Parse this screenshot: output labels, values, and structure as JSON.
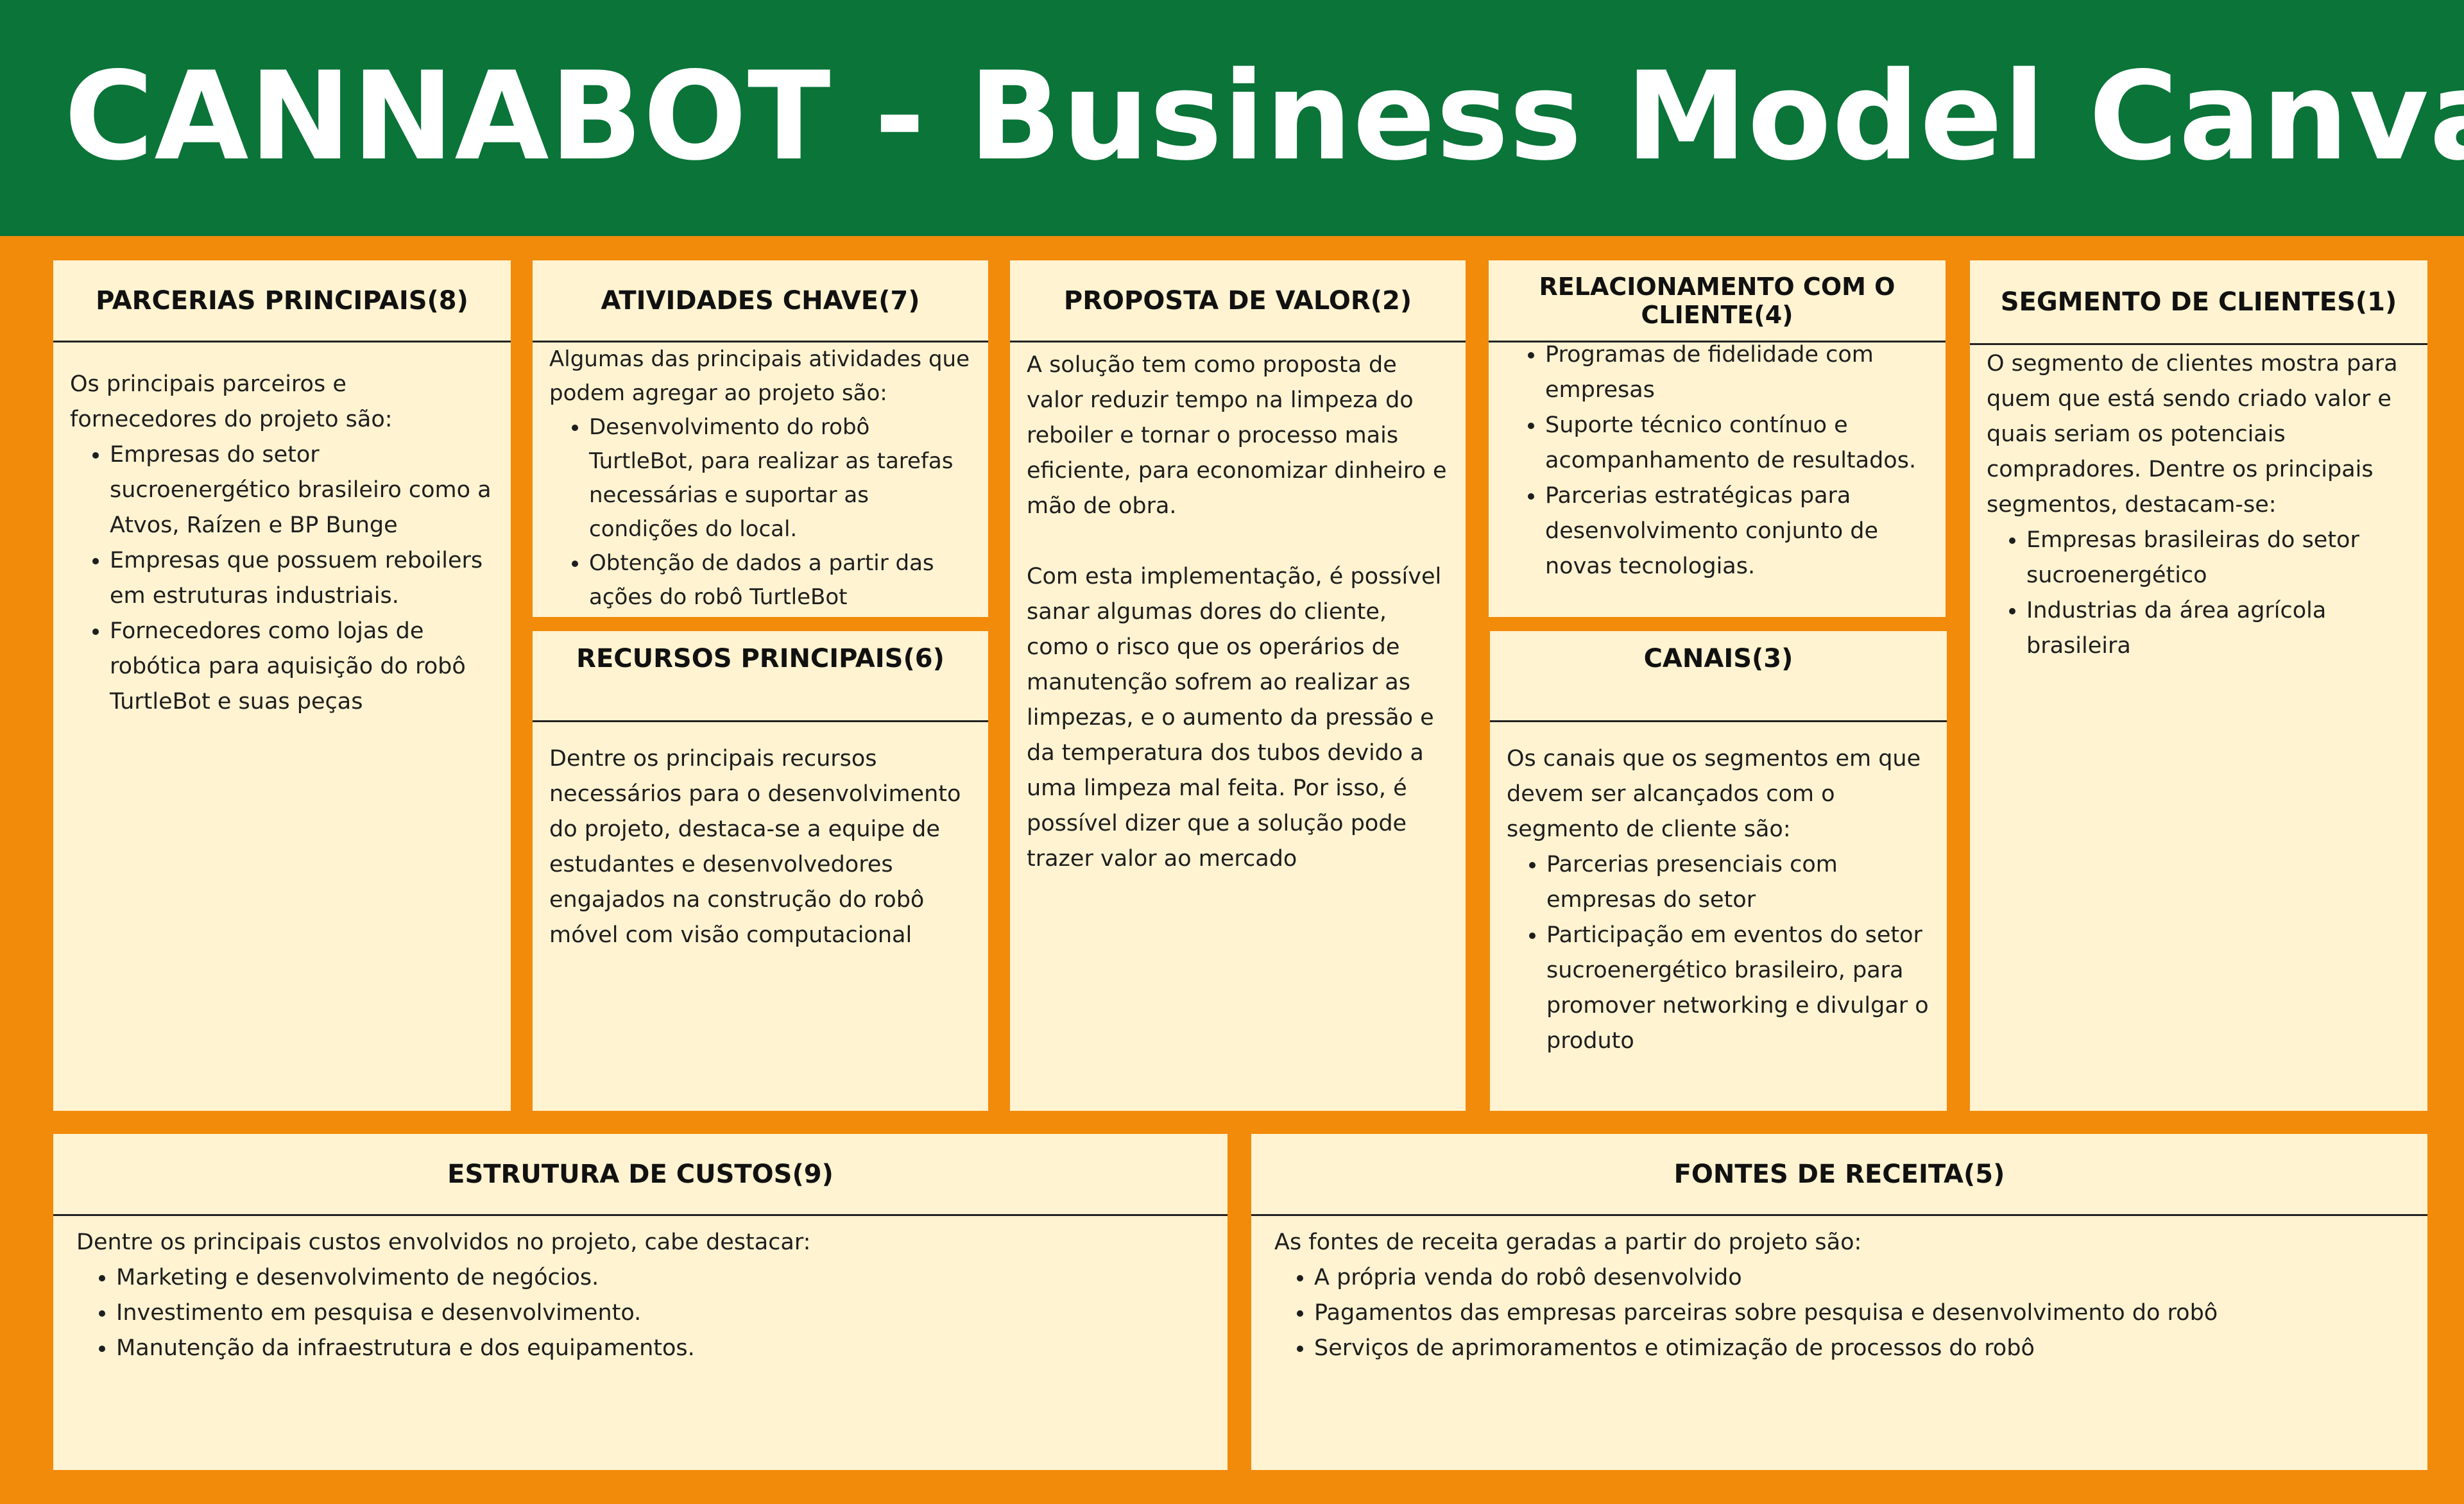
{
  "title": "CANNABOT - Business Model Canvas",
  "colors": {
    "header": "#0a7439",
    "background": "#f28a0a",
    "card": "#fff3d1"
  },
  "parcerias": {
    "title": "PARCERIAS PRINCIPAIS(8)",
    "intro": "Os principais parceiros e fornecedores do projeto são:",
    "items": [
      "Empresas do setor sucroenergético brasileiro como a Atvos, Raízen e BP Bunge",
      "Empresas que possuem reboilers em estruturas industriais.",
      "Fornecedores como lojas de robótica para aquisição do robô TurtleBot e suas peças"
    ]
  },
  "atividades": {
    "title": "ATIVIDADES CHAVE(7)",
    "intro": "Algumas das principais atividades que podem agregar ao projeto são:",
    "items": [
      "Desenvolvimento do robô TurtleBot, para realizar as tarefas necessárias e suportar as condições do local.",
      "Obtenção de dados a partir das ações do robô TurtleBot"
    ]
  },
  "recursos": {
    "title": "RECURSOS PRINCIPAIS(6)",
    "text": "Dentre os principais recursos necessários para o desenvolvimento do projeto, destaca-se a equipe de estudantes e desenvolvedores engajados na construção do robô móvel com visão computacional"
  },
  "proposta": {
    "title": "PROPOSTA DE VALOR(2)",
    "p1": "A solução tem como proposta de valor reduzir tempo na limpeza do reboiler e tornar o processo mais eficiente, para economizar dinheiro e mão de obra.",
    "p2": "Com esta implementação, é possível sanar algumas dores do cliente, como o risco que os operários de manutenção sofrem ao realizar as limpezas, e o aumento da pressão e da temperatura dos tubos devido a uma limpeza mal feita. Por isso, é possível dizer que a solução pode trazer valor ao mercado"
  },
  "relacionamento": {
    "title": "RELACIONAMENTO COM O CLIENTE(4)",
    "items": [
      "Programas de fidelidade com empresas",
      "Suporte técnico contínuo e acompanhamento de resultados.",
      "Parcerias estratégicas para desenvolvimento conjunto de novas tecnologias."
    ]
  },
  "canais": {
    "title": "CANAIS(3)",
    "intro": "Os canais que os segmentos em que devem ser alcançados com o segmento de cliente são:",
    "items": [
      "Parcerias presenciais com empresas do setor",
      "Participação em eventos do setor sucroenergético brasileiro, para promover networking e divulgar o produto"
    ]
  },
  "segmento": {
    "title": "SEGMENTO DE CLIENTES(1)",
    "intro": "O segmento de clientes mostra para quem que está sendo criado valor e quais seriam os potenciais compradores. Dentre os principais segmentos, destacam-se:",
    "items": [
      "Empresas brasileiras do setor sucroenergético",
      "Industrias da área agrícola brasileira"
    ]
  },
  "custos": {
    "title": "ESTRUTURA DE CUSTOS(9)",
    "intro": "Dentre os principais custos envolvidos no projeto, cabe destacar:",
    "items": [
      "Marketing e desenvolvimento de negócios.",
      "Investimento em pesquisa e desenvolvimento.",
      "Manutenção da infraestrutura e dos equipamentos."
    ]
  },
  "receita": {
    "title": "FONTES DE RECEITA(5)",
    "intro": "As fontes de receita geradas a partir do projeto são:",
    "items": [
      "A própria venda do robô desenvolvido",
      "Pagamentos das empresas parceiras sobre pesquisa e desenvolvimento do robô",
      "Serviços de aprimoramentos e otimização de processos do robô"
    ]
  }
}
